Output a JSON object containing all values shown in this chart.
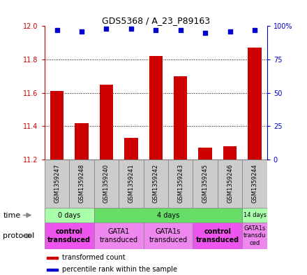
{
  "title": "GDS5368 / A_23_P89163",
  "samples": [
    "GSM1359247",
    "GSM1359248",
    "GSM1359240",
    "GSM1359241",
    "GSM1359242",
    "GSM1359243",
    "GSM1359245",
    "GSM1359246",
    "GSM1359244"
  ],
  "bar_values": [
    11.61,
    11.42,
    11.65,
    11.33,
    11.82,
    11.7,
    11.27,
    11.28,
    11.87
  ],
  "dot_values": [
    97,
    96,
    98,
    98,
    97,
    97,
    95,
    96,
    97
  ],
  "ylim_left": [
    11.2,
    12.0
  ],
  "ylim_right": [
    0,
    100
  ],
  "yticks_left": [
    11.2,
    11.4,
    11.6,
    11.8,
    12.0
  ],
  "yticks_right": [
    0,
    25,
    50,
    75,
    100
  ],
  "bar_color": "#cc0000",
  "dot_color": "#0000cc",
  "bar_bottom": 11.2,
  "time_groups": [
    {
      "label": "0 days",
      "start": 0,
      "end": 2,
      "color": "#aaffaa"
    },
    {
      "label": "4 days",
      "start": 2,
      "end": 8,
      "color": "#66dd66"
    },
    {
      "label": "14 days",
      "start": 8,
      "end": 9,
      "color": "#aaffaa"
    }
  ],
  "protocol_groups": [
    {
      "label": "control\ntransduced",
      "start": 0,
      "end": 2,
      "color": "#ee55ee",
      "bold": true
    },
    {
      "label": "GATA1\ntransduced",
      "start": 2,
      "end": 4,
      "color": "#ee88ee",
      "bold": false
    },
    {
      "label": "GATA1s\ntransduced",
      "start": 4,
      "end": 6,
      "color": "#ee88ee",
      "bold": false
    },
    {
      "label": "control\ntransduced",
      "start": 6,
      "end": 8,
      "color": "#ee55ee",
      "bold": true
    },
    {
      "label": "GATA1s\ntransdu\nced",
      "start": 8,
      "end": 9,
      "color": "#ee88ee",
      "bold": false
    }
  ],
  "legend_items": [
    {
      "label": "transformed count",
      "color": "#cc0000"
    },
    {
      "label": "percentile rank within the sample",
      "color": "#0000cc"
    }
  ],
  "sample_bg_color": "#cccccc",
  "grid_lines": [
    11.4,
    11.6,
    11.8
  ],
  "n_samples": 9
}
